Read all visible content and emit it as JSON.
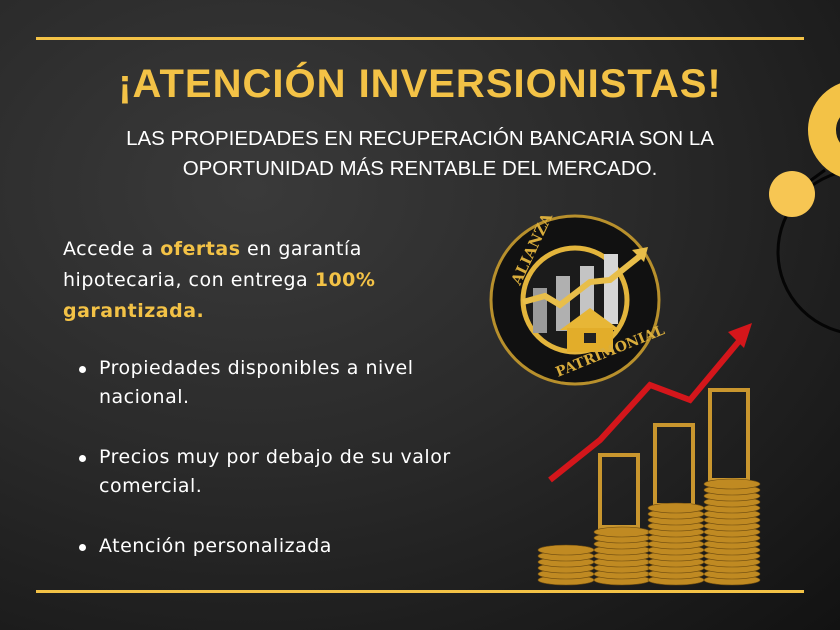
{
  "title": "¡ATENCIÓN INVERSIONISTAS!",
  "subtitle": [
    "LAS PROPIEDADES EN RECUPERACIÓN BANCARIA SON LA",
    "OPORTUNIDAD MÁS RENTABLE DEL MERCADO."
  ],
  "intro": {
    "p1": "Accede a ",
    "h1": "ofertas",
    "p2": " en garantía hipotecaria, con entrega ",
    "h2": "100% garantizada."
  },
  "bullets": [
    "Propiedades disponibles a nivel nacional.",
    "Precios muy por debajo de su valor comercial.",
    "Atención personalizada"
  ],
  "logo": {
    "top_text": "ALIANZA",
    "bottom_text": "PATRIMONIAL"
  },
  "colors": {
    "accent": "#f3c246",
    "arrow": "#d4161b",
    "background": "#2a2a2a"
  }
}
